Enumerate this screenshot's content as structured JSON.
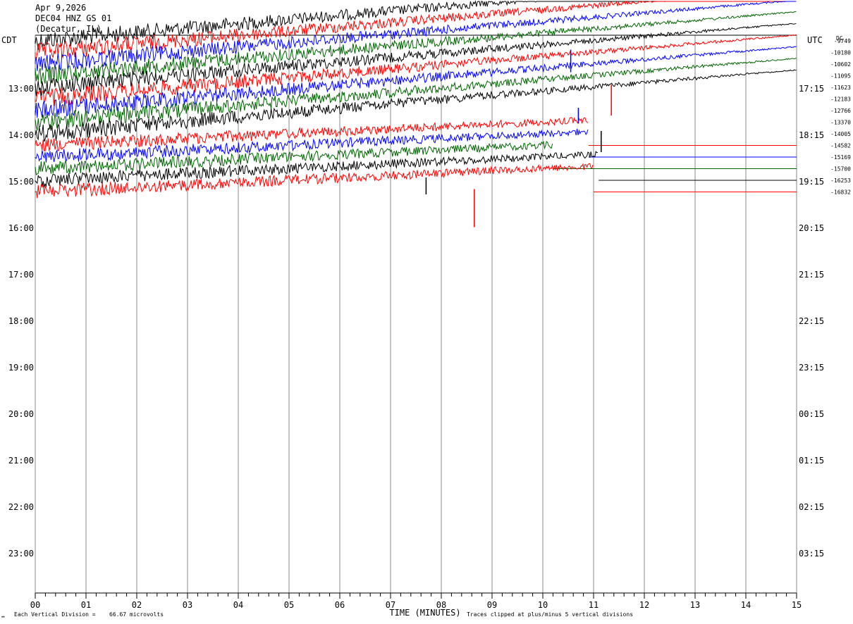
{
  "header": {
    "date": "Apr 9,2026",
    "station": "DEC04 HNZ GS 01",
    "location": "(Decatur, IL)"
  },
  "footer": {
    "division_label": "Each Vertical Division =",
    "division_value": "66.67 microvolts",
    "clip_note": "Traces clipped at plus/minus 5 vertical divisions",
    "corner_mark": "↔"
  },
  "chart_data": {
    "type": "line",
    "title": "DEC04 HNZ GS 01",
    "xlabel": "TIME (MINUTES)",
    "x_ticks": [
      "00",
      "01",
      "02",
      "03",
      "04",
      "05",
      "06",
      "07",
      "08",
      "09",
      "10",
      "11",
      "12",
      "13",
      "14",
      "15"
    ],
    "xlim": [
      0,
      15
    ],
    "left_axis_label": "CDT",
    "right_axis_label": "UTC",
    "dc_label": "DC",
    "left_hours": [
      "13:00",
      "14:00",
      "15:00",
      "16:00",
      "17:00",
      "18:00",
      "19:00",
      "20:00",
      "21:00",
      "22:00",
      "23:00"
    ],
    "right_hours": [
      "17:15",
      "18:15",
      "19:15",
      "20:15",
      "21:15",
      "22:15",
      "23:15",
      "00:15",
      "01:15",
      "02:15",
      "03:15"
    ],
    "dc_values": [
      "-9749",
      "-10180",
      "-10602",
      "-11095",
      "-11623",
      "-12183",
      "-12766",
      "-13370",
      "-14005",
      "-14582",
      "-15169",
      "-15700",
      "-16253",
      "-16832"
    ],
    "trace_colors": [
      "#000000",
      "#ff0000",
      "#0000ff",
      "#006400"
    ],
    "grid": true,
    "series": [
      {
        "trace": 0,
        "color": "#000000",
        "end_minute": 15.0
      },
      {
        "trace": 1,
        "color": "#ff0000",
        "end_minute": 15.0
      },
      {
        "trace": 2,
        "color": "#0000ff",
        "end_minute": 15.0
      },
      {
        "trace": 3,
        "color": "#006400",
        "end_minute": 15.0
      },
      {
        "trace": 4,
        "color": "#000000",
        "end_minute": 15.0
      },
      {
        "trace": 5,
        "color": "#ff0000",
        "end_minute": 15.0
      },
      {
        "trace": 6,
        "color": "#0000ff",
        "end_minute": 15.0
      },
      {
        "trace": 7,
        "color": "#006400",
        "end_minute": 15.0
      },
      {
        "trace": 8,
        "color": "#000000",
        "end_minute": 15.0
      },
      {
        "trace": 9,
        "color": "#ff0000",
        "end_minute": 10.9
      },
      {
        "trace": 10,
        "color": "#0000ff",
        "end_minute": 10.9
      },
      {
        "trace": 11,
        "color": "#006400",
        "end_minute": 10.2
      },
      {
        "trace": 12,
        "color": "#000000",
        "end_minute": 11.1
      },
      {
        "trace": 13,
        "color": "#ff0000",
        "end_minute": 11.0
      }
    ]
  }
}
